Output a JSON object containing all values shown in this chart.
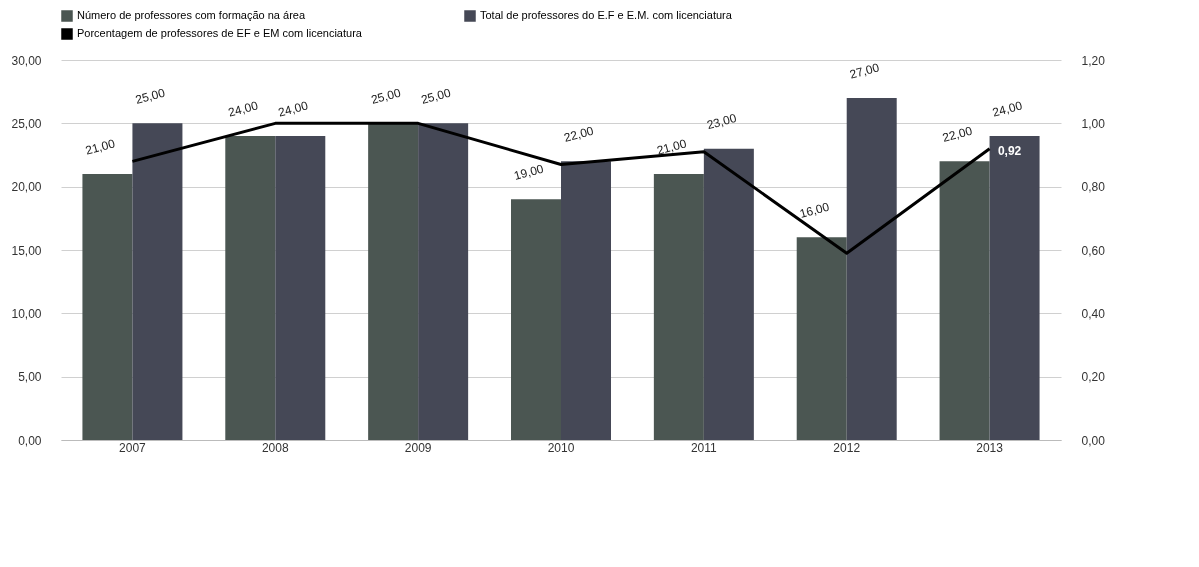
{
  "chart_data": {
    "type": "bar",
    "categories": [
      "2007",
      "2008",
      "2009",
      "2010",
      "2011",
      "2012",
      "2013"
    ],
    "series": [
      {
        "name": "Número de professores com formação na área",
        "color": "#4b5652",
        "values": [
          21,
          24,
          25,
          19,
          21,
          16,
          22
        ],
        "value_labels": [
          "21,00",
          "24,00",
          "25,00",
          "19,00",
          "21,00",
          "16,00",
          "22,00"
        ]
      },
      {
        "name": "Total de professores do E.F e E.M. com licenciatura",
        "color": "#454856",
        "values": [
          25,
          24,
          25,
          22,
          23,
          27,
          24
        ],
        "value_labels": [
          "25,00",
          "24,00",
          "25,00",
          "22,00",
          "23,00",
          "27,00",
          "24,00"
        ]
      },
      {
        "name": "Porcentagem de professores de EF e EM com licenciatura",
        "type": "line",
        "axis": "y2",
        "color": "#000000",
        "values": [
          0.88,
          1.0,
          1.0,
          0.87,
          0.91,
          0.59,
          0.92
        ],
        "value_labels": [
          null,
          null,
          null,
          null,
          null,
          null,
          "0,92"
        ]
      }
    ],
    "ylim": [
      0,
      30
    ],
    "yticks": [
      {
        "value": 0,
        "label": "0,00"
      },
      {
        "value": 5,
        "label": "5,00"
      },
      {
        "value": 10,
        "label": "10,00"
      },
      {
        "value": 15,
        "label": "15,00"
      },
      {
        "value": 20,
        "label": "20,00"
      },
      {
        "value": 25,
        "label": "25,00"
      },
      {
        "value": 30,
        "label": "30,00"
      }
    ],
    "y2lim": [
      0,
      1.2
    ],
    "y2ticks": [
      {
        "value": 0,
        "label": "0,00"
      },
      {
        "value": 0.2,
        "label": "0,20"
      },
      {
        "value": 0.4,
        "label": "0,40"
      },
      {
        "value": 0.6,
        "label": "0,60"
      },
      {
        "value": 0.8,
        "label": "0,80"
      },
      {
        "value": 1.0,
        "label": "1,00"
      },
      {
        "value": 1.2,
        "label": "1,20"
      }
    ],
    "grid": "y",
    "legend": "top"
  }
}
